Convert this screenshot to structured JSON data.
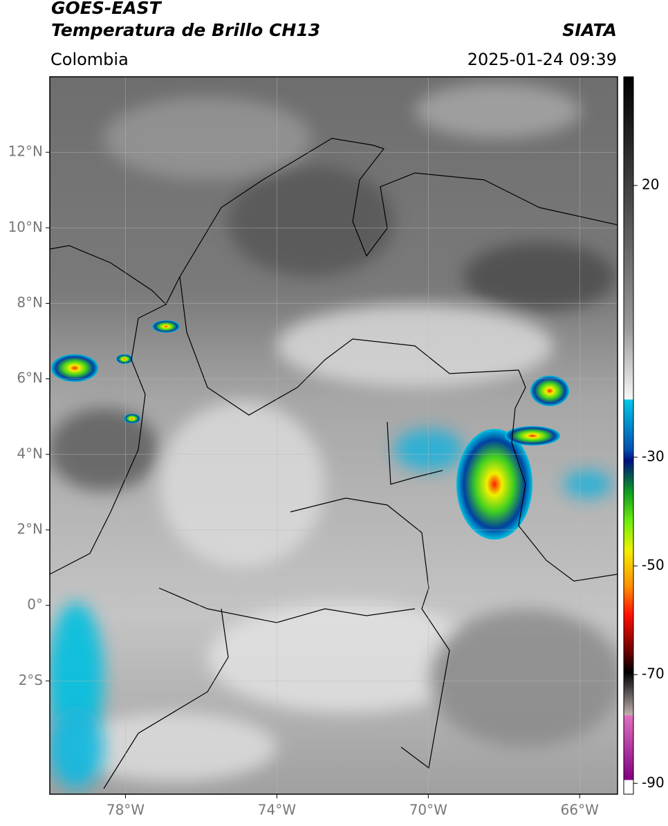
{
  "header": {
    "title": "GOES-EAST",
    "subtitle": "Temperatura de Brillo CH13",
    "source": "SIATA",
    "region": "Colombia",
    "datetime": "2025-01-24 09:39"
  },
  "map": {
    "lonlim": [
      -80,
      -65
    ],
    "latlim": [
      -5,
      14
    ],
    "lonticks": [
      {
        "value": -78,
        "label": "78°W"
      },
      {
        "value": -74,
        "label": "74°W"
      },
      {
        "value": -70,
        "label": "70°W"
      },
      {
        "value": -66,
        "label": "66°W"
      }
    ],
    "latticks": [
      {
        "value": 12,
        "label": "12°N"
      },
      {
        "value": 10,
        "label": "10°N"
      },
      {
        "value": 8,
        "label": "8°N"
      },
      {
        "value": 6,
        "label": "6°N"
      },
      {
        "value": 4,
        "label": "4°N"
      },
      {
        "value": 2,
        "label": "2°N"
      },
      {
        "value": 0,
        "label": "0°"
      },
      {
        "value": -2,
        "label": "2°S"
      }
    ],
    "grid": true
  },
  "colorbar": {
    "lim": [
      -92,
      40
    ],
    "ticks": [
      20,
      -30,
      -50,
      -70,
      -90
    ]
  }
}
